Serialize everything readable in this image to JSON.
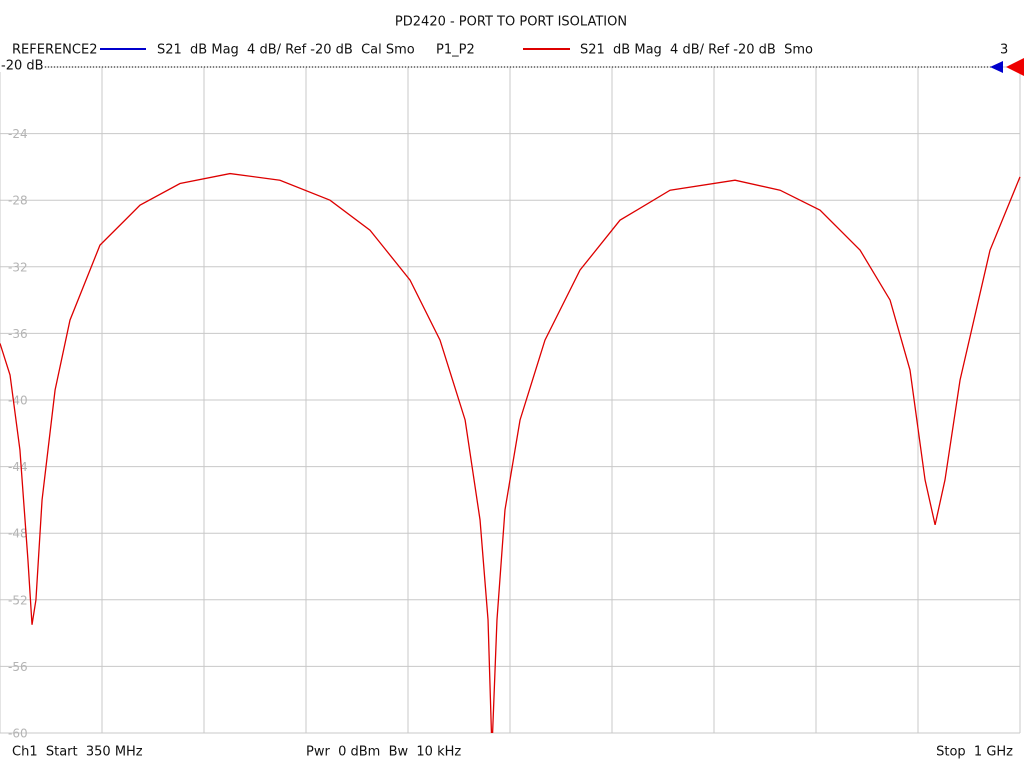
{
  "chart_data": {
    "type": "line",
    "title": "PD2420 - PORT TO PORT ISOLATION",
    "reference_label": "-20 dB",
    "channel_number": "3",
    "footer": {
      "start": "Ch1  Start  350 MHz",
      "power": "Pwr  0 dBm  Bw  10 kHz",
      "stop": "Stop  1 GHz"
    },
    "x": [
      350,
      356.4,
      362.7,
      367.8,
      370.4,
      372.9,
      376.8,
      385.1,
      394.6,
      413.7,
      439.2,
      464.7,
      496.6,
      528.4,
      560.3,
      585.8,
      611.3,
      630.4,
      646.4,
      655.9,
      661.0,
      663.5,
      666.7,
      671.8,
      681.4,
      697.3,
      719.6,
      745.1,
      777.0,
      818.4,
      847.1,
      872.6,
      898.1,
      917.2,
      929.9,
      939.5,
      945.9,
      952.2,
      961.8,
      980.9,
      1000
    ],
    "series": [
      {
        "name": "REFERENCE2",
        "description": "S21  dB Mag  4 dB/ Ref -20 dB  Cal Smo",
        "color": "#0000cc"
      },
      {
        "name": "P1_P2",
        "description": "S21  dB Mag  4 dB/ Ref -20 dB  Smo",
        "color": "#dd0000",
        "values": [
          -36.6,
          -38.5,
          -43.0,
          -49.6,
          -53.5,
          -52.0,
          -46.0,
          -39.4,
          -35.2,
          -30.7,
          -28.3,
          -27.0,
          -26.4,
          -26.8,
          -28.0,
          -29.8,
          -32.8,
          -36.4,
          -41.2,
          -47.2,
          -53.2,
          -61,
          -53.2,
          -46.6,
          -41.2,
          -36.4,
          -32.2,
          -29.2,
          -27.4,
          -26.8,
          -27.4,
          -28.6,
          -31.0,
          -34.0,
          -38.2,
          -44.8,
          -47.5,
          -44.8,
          -38.8,
          -31.0,
          -26.6
        ]
      }
    ],
    "xlim": [
      350,
      1000
    ],
    "xticks": [
      350,
      415,
      480,
      545,
      610,
      675,
      740,
      805,
      870,
      935,
      1000
    ],
    "ylim": [
      -60,
      -20
    ],
    "yticks": [
      -20,
      -24,
      -28,
      -32,
      -36,
      -40,
      -44,
      -48,
      -52,
      -56,
      -60
    ],
    "grid": true
  }
}
